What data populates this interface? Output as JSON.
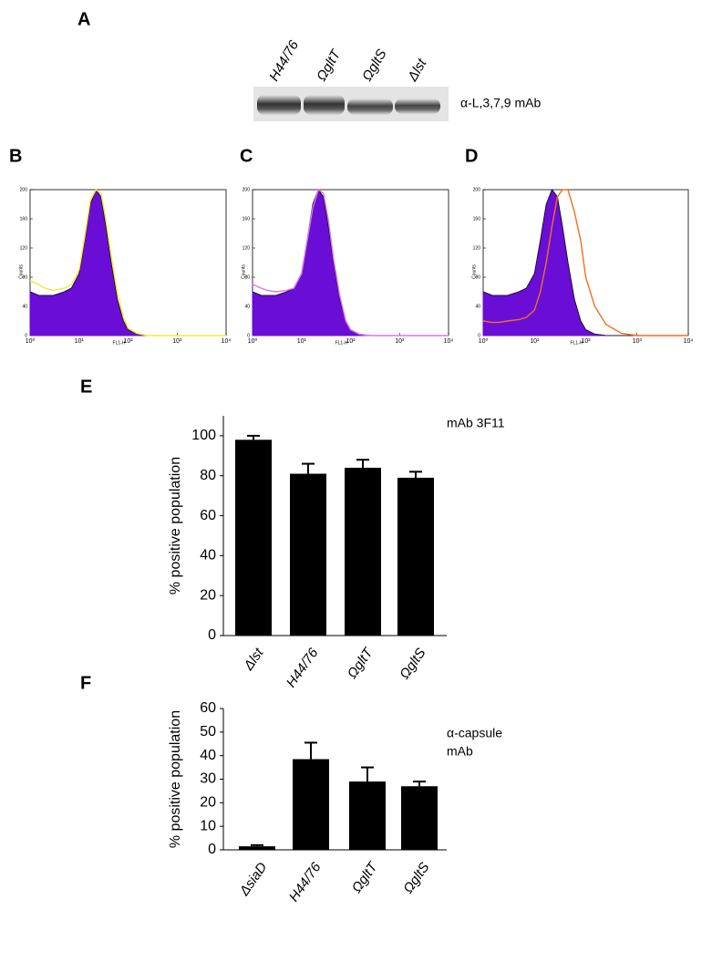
{
  "panel_a": {
    "title": "A",
    "lanes": [
      "H44/76",
      "ΩgltT",
      "ΩgltS",
      "Δlst"
    ],
    "annotation": "α-L,3,7,9 mAb"
  },
  "chart_data": [
    {
      "type": "line",
      "title": "B",
      "ylabel": "Counts",
      "xlabel": "FL1-H",
      "log_x": true,
      "xlim": [
        1,
        10000
      ],
      "xticks": [
        {
          "value": 1,
          "label": "10⁰"
        },
        {
          "value": 10,
          "label": "10¹"
        },
        {
          "value": 100,
          "label": "10²"
        },
        {
          "value": 1000,
          "label": "10³"
        },
        {
          "value": 10000,
          "label": "10⁴"
        }
      ],
      "ylim": [
        0,
        200
      ],
      "yticks": [
        0,
        40,
        80,
        120,
        160,
        200
      ],
      "x": [
        1,
        1.5,
        2,
        3,
        5,
        7,
        10,
        13,
        17,
        22,
        28,
        35,
        45,
        60,
        80,
        100,
        150,
        250,
        500,
        1000,
        10000
      ],
      "series": [
        {
          "name": null,
          "color": "#6a0dd6",
          "filled": true,
          "values": [
            60,
            55,
            55,
            55,
            60,
            65,
            85,
            130,
            180,
            200,
            190,
            150,
            100,
            50,
            20,
            8,
            2,
            0,
            0,
            0,
            0
          ]
        },
        {
          "name": null,
          "color": "#f5e83a",
          "filled": false,
          "values": [
            75,
            70,
            65,
            62,
            65,
            70,
            90,
            135,
            185,
            200,
            195,
            160,
            110,
            60,
            25,
            10,
            3,
            0,
            0,
            0,
            0
          ]
        }
      ]
    },
    {
      "type": "line",
      "title": "C",
      "ylabel": "Counts",
      "xlabel": "FL1-H",
      "log_x": true,
      "xlim": [
        1,
        10000
      ],
      "xticks": [
        {
          "value": 1,
          "label": "10⁰"
        },
        {
          "value": 10,
          "label": "10¹"
        },
        {
          "value": 100,
          "label": "10²"
        },
        {
          "value": 1000,
          "label": "10³"
        },
        {
          "value": 10000,
          "label": "10⁴"
        }
      ],
      "ylim": [
        0,
        200
      ],
      "yticks": [
        0,
        40,
        80,
        120,
        160,
        200
      ],
      "x": [
        1,
        1.5,
        2,
        3,
        5,
        7,
        10,
        13,
        17,
        22,
        28,
        35,
        45,
        60,
        80,
        100,
        150,
        250,
        500,
        1000,
        10000
      ],
      "series": [
        {
          "name": null,
          "color": "#6a0dd6",
          "filled": true,
          "values": [
            60,
            55,
            55,
            55,
            60,
            65,
            85,
            130,
            180,
            200,
            190,
            150,
            100,
            50,
            20,
            8,
            2,
            0,
            0,
            0,
            0
          ]
        },
        {
          "name": null,
          "color": "#d77ad9",
          "filled": false,
          "values": [
            70,
            65,
            62,
            60,
            62,
            65,
            85,
            130,
            175,
            200,
            195,
            160,
            105,
            55,
            20,
            8,
            2,
            0,
            0,
            0,
            0
          ]
        }
      ]
    },
    {
      "type": "line",
      "title": "D",
      "ylabel": "Counts",
      "xlabel": "FL1-H",
      "log_x": true,
      "xlim": [
        1,
        10000
      ],
      "xticks": [
        {
          "value": 1,
          "label": "10⁰"
        },
        {
          "value": 10,
          "label": "10¹"
        },
        {
          "value": 100,
          "label": "10²"
        },
        {
          "value": 1000,
          "label": "10³"
        },
        {
          "value": 10000,
          "label": "10⁴"
        }
      ],
      "ylim": [
        0,
        200
      ],
      "yticks": [
        0,
        40,
        80,
        120,
        160,
        200
      ],
      "x": [
        1,
        1.5,
        2,
        3,
        5,
        7,
        10,
        13,
        17,
        22,
        28,
        35,
        45,
        60,
        80,
        100,
        150,
        250,
        500,
        1000,
        10000
      ],
      "series": [
        {
          "name": null,
          "color": "#6a0dd6",
          "filled": true,
          "values": [
            60,
            55,
            55,
            55,
            60,
            65,
            85,
            130,
            180,
            200,
            190,
            150,
            100,
            50,
            20,
            8,
            2,
            0,
            0,
            0,
            0
          ]
        },
        {
          "name": null,
          "color": "#f07020",
          "filled": false,
          "values": [
            20,
            18,
            18,
            20,
            22,
            25,
            35,
            60,
            100,
            150,
            190,
            200,
            200,
            170,
            130,
            80,
            40,
            15,
            3,
            0,
            0
          ]
        }
      ]
    },
    {
      "type": "bar",
      "title": "E",
      "ylabel": "% positive population",
      "annotation": [
        "mAb 3F11"
      ],
      "categories": [
        "Δlst",
        "H44/76",
        "ΩgltT",
        "ΩgltS"
      ],
      "values": [
        98,
        81,
        84,
        79
      ],
      "errors": [
        2,
        5,
        4,
        3
      ],
      "color": "#000000",
      "ylim": [
        0,
        110
      ],
      "yticks": [
        0,
        20,
        40,
        60,
        80,
        100
      ]
    },
    {
      "type": "bar",
      "title": "F",
      "ylabel": "% positive population",
      "annotation": [
        "α-capsule",
        "mAb"
      ],
      "categories": [
        "ΔsiaD",
        "H44/76",
        "ΩgltT",
        "ΩgltS"
      ],
      "values": [
        1.5,
        38.5,
        29,
        27
      ],
      "errors": [
        0.5,
        7,
        6,
        2
      ],
      "color": "#000000",
      "ylim": [
        0,
        60
      ],
      "yticks": [
        0,
        10,
        20,
        30,
        40,
        50,
        60
      ]
    }
  ]
}
